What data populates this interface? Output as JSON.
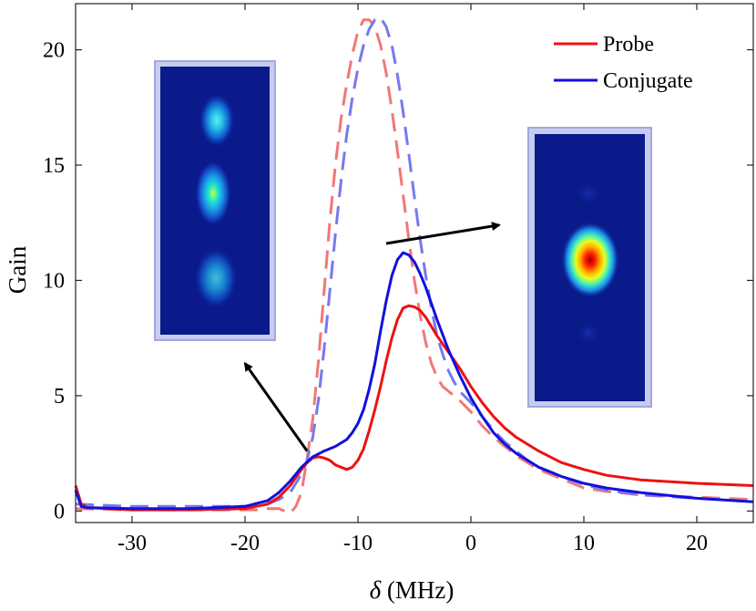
{
  "chart_data": {
    "type": "line",
    "title": "",
    "xlabel_symbol": "δ",
    "xlabel_unit": " (MHz)",
    "ylabel": "Gain",
    "xlim": [
      -35,
      25
    ],
    "ylim": [
      -0.5,
      22
    ],
    "xticks": [
      -30,
      -20,
      -10,
      0,
      10,
      20
    ],
    "yticks": [
      0,
      5,
      10,
      15,
      20
    ],
    "grid": false,
    "legend": {
      "placement": "top-right",
      "entries": [
        "Probe",
        "Conjugate"
      ]
    },
    "colors": {
      "probe": "#ee1111",
      "conjugate": "#1111dd",
      "probe_dashed": "#f07878",
      "conjugate_dashed": "#7878ee"
    },
    "series": [
      {
        "name": "Probe",
        "style": "solid",
        "x": [
          -35,
          -34.5,
          -34,
          -30,
          -25,
          -20,
          -18,
          -17,
          -16,
          -15,
          -14.5,
          -14,
          -13.5,
          -13,
          -12.5,
          -12,
          -11.5,
          -11,
          -10.5,
          -10,
          -9.5,
          -9,
          -8.5,
          -8,
          -7.5,
          -7,
          -6.5,
          -6,
          -5.5,
          -5,
          -4.5,
          -4,
          -3.5,
          -3,
          -2,
          -1,
          0,
          1,
          2,
          3,
          4,
          5,
          6,
          8,
          10,
          12,
          15,
          20,
          25
        ],
        "y": [
          1.1,
          0.3,
          0.15,
          0.05,
          0.05,
          0.1,
          0.3,
          0.6,
          1.1,
          1.8,
          2.1,
          2.3,
          2.35,
          2.3,
          2.2,
          2.0,
          1.9,
          1.8,
          1.9,
          2.2,
          2.7,
          3.5,
          4.4,
          5.4,
          6.5,
          7.5,
          8.3,
          8.8,
          8.9,
          8.85,
          8.7,
          8.4,
          8.0,
          7.6,
          6.9,
          6.2,
          5.4,
          4.7,
          4.1,
          3.6,
          3.2,
          2.9,
          2.6,
          2.1,
          1.8,
          1.55,
          1.35,
          1.2,
          1.1
        ]
      },
      {
        "name": "Conjugate",
        "style": "solid",
        "x": [
          -35,
          -34.5,
          -34,
          -30,
          -25,
          -20,
          -18,
          -17,
          -16,
          -15,
          -14,
          -13,
          -12,
          -11,
          -10.5,
          -10,
          -9.5,
          -9,
          -8.5,
          -8,
          -7.5,
          -7,
          -6.5,
          -6,
          -5.5,
          -5,
          -4.5,
          -4,
          -3.5,
          -3,
          -2,
          -1,
          0,
          1,
          2,
          3,
          4,
          5,
          6,
          8,
          10,
          12,
          15,
          20,
          25
        ],
        "y": [
          0.9,
          0.2,
          0.15,
          0.1,
          0.1,
          0.2,
          0.45,
          0.8,
          1.3,
          1.9,
          2.35,
          2.6,
          2.8,
          3.1,
          3.4,
          3.8,
          4.4,
          5.3,
          6.4,
          7.8,
          9.1,
          10.2,
          10.9,
          11.2,
          11.1,
          10.8,
          10.3,
          9.7,
          9.0,
          8.3,
          7.0,
          5.9,
          4.9,
          4.1,
          3.4,
          2.9,
          2.5,
          2.2,
          1.9,
          1.5,
          1.2,
          1.0,
          0.8,
          0.55,
          0.4
        ]
      },
      {
        "name": "",
        "style": "dashed",
        "color_key": "probe_dashed",
        "x": [
          -35,
          -30,
          -25,
          -20,
          -19,
          -18,
          -17,
          -16.5,
          -16,
          -15.5,
          -15,
          -14.5,
          -14,
          -13.5,
          -13,
          -12.5,
          -12,
          -11.5,
          -11,
          -10.5,
          -10,
          -9.5,
          -9,
          -8.5,
          -8,
          -7.5,
          -7,
          -6.5,
          -6,
          -5.5,
          -5,
          -4.5,
          -4,
          -3.5,
          -3,
          -2.5,
          -2,
          -1.5,
          -1,
          0,
          1,
          2,
          3,
          4,
          5,
          6,
          8,
          10,
          12,
          15,
          20,
          25
        ],
        "y": [
          0.1,
          0.05,
          0.05,
          0.05,
          0.05,
          0.1,
          0.1,
          0,
          -0.1,
          0.2,
          0.8,
          2.3,
          4.0,
          6.5,
          9.5,
          12.5,
          15.0,
          17.0,
          18.5,
          19.8,
          20.8,
          21.3,
          21.3,
          21.0,
          20.2,
          19.0,
          17.4,
          15.6,
          13.7,
          11.8,
          10.0,
          8.5,
          7.3,
          6.4,
          5.8,
          5.4,
          5.2,
          5.0,
          4.8,
          4.3,
          3.7,
          3.2,
          2.8,
          2.4,
          2.1,
          1.8,
          1.4,
          1.0,
          0.85,
          0.7,
          0.6,
          0.5
        ]
      },
      {
        "name": "",
        "style": "dashed",
        "color_key": "conjugate_dashed",
        "x": [
          -35,
          -30,
          -25,
          -20,
          -19,
          -18,
          -17,
          -16,
          -15.5,
          -15,
          -14.5,
          -14,
          -13.5,
          -13,
          -12.5,
          -12,
          -11.5,
          -11,
          -10.5,
          -10,
          -9.5,
          -9,
          -8.5,
          -8,
          -7.5,
          -7,
          -6.5,
          -6,
          -5.5,
          -5,
          -4.5,
          -4,
          -3.5,
          -3,
          -2.5,
          -2,
          -1.5,
          -1,
          0,
          1,
          2,
          3,
          4,
          5,
          6,
          8,
          10,
          12,
          15,
          20,
          25
        ],
        "y": [
          0.3,
          0.2,
          0.2,
          0.2,
          0.25,
          0.3,
          0.5,
          0.8,
          1.2,
          1.6,
          2.2,
          3.2,
          4.8,
          7.0,
          9.5,
          12.0,
          14.3,
          16.3,
          17.9,
          19.2,
          20.2,
          20.9,
          21.3,
          21.4,
          21.0,
          20.2,
          18.9,
          17.3,
          15.5,
          13.6,
          11.8,
          10.2,
          8.8,
          7.6,
          6.8,
          6.1,
          5.6,
          5.2,
          4.7,
          4.1,
          3.5,
          3.0,
          2.6,
          2.2,
          1.9,
          1.5,
          1.15,
          0.9,
          0.7,
          0.55,
          0.4
        ]
      }
    ],
    "annotations": [
      {
        "type": "arrow",
        "from": [
          -14.5,
          2.6
        ],
        "to": [
          -20,
          6.4
        ]
      },
      {
        "type": "arrow",
        "from": [
          -7.5,
          11.6
        ],
        "to": [
          2.5,
          12.4
        ]
      }
    ],
    "insets": [
      {
        "description": "three-spot beam image",
        "spots": 3
      },
      {
        "description": "single-spot beam image",
        "spots": 1
      }
    ]
  }
}
